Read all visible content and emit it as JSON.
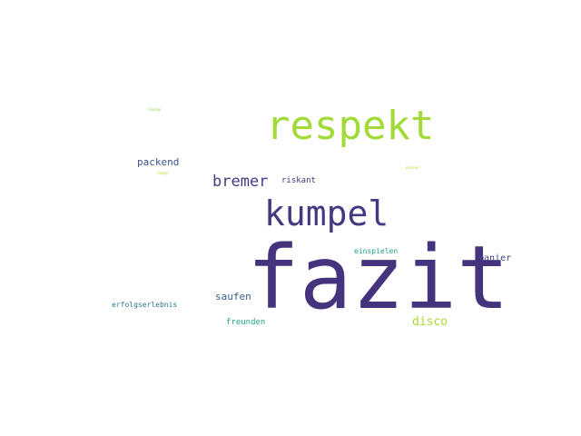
{
  "words": [
    {
      "text": "fazit",
      "color": "#46337e"
    },
    {
      "text": "respekt",
      "color": "#a2da37"
    },
    {
      "text": "kumpel",
      "color": "#453781"
    },
    {
      "text": "bremer",
      "color": "#433e85"
    },
    {
      "text": "packend",
      "color": "#3b528b"
    },
    {
      "text": "riskant",
      "color": "#46337e"
    },
    {
      "text": "disco",
      "color": "#a5db36"
    },
    {
      "text": "manier",
      "color": "#414487"
    },
    {
      "text": "saufen",
      "color": "#365c8d"
    },
    {
      "text": "einspielen",
      "color": "#21a585"
    },
    {
      "text": "erfolgserlebnis",
      "color": "#2a788e"
    },
    {
      "text": "freunden",
      "color": "#20a386"
    },
    {
      "text": "lauten",
      "color": "#86d549"
    },
    {
      "text": "lange",
      "color": "#c5e021"
    },
    {
      "text": "passen",
      "color": "#bddf26"
    }
  ]
}
